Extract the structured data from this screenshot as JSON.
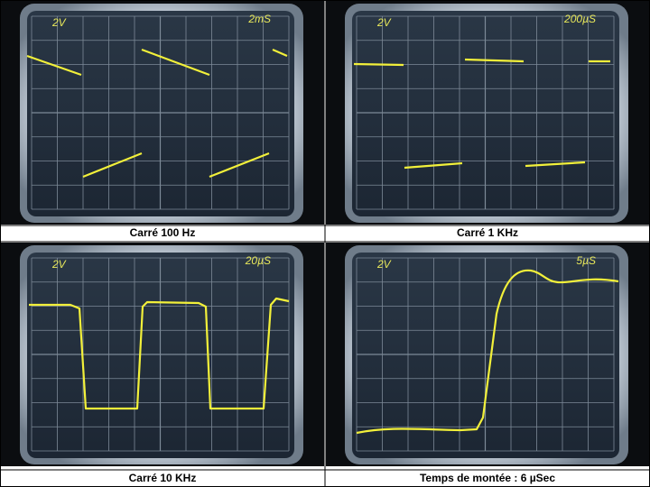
{
  "panels": [
    {
      "volts": "2V",
      "timebase": "2mS",
      "caption": "Carré 100 Hz"
    },
    {
      "volts": "2V",
      "timebase": "200µS",
      "caption": "Carré 1 KHz"
    },
    {
      "volts": "2V",
      "timebase": "20µS",
      "caption": "Carré 10 KHz"
    },
    {
      "volts": "2V",
      "timebase": "5µS",
      "caption": "Temps de montée :  6 µSec"
    }
  ]
}
